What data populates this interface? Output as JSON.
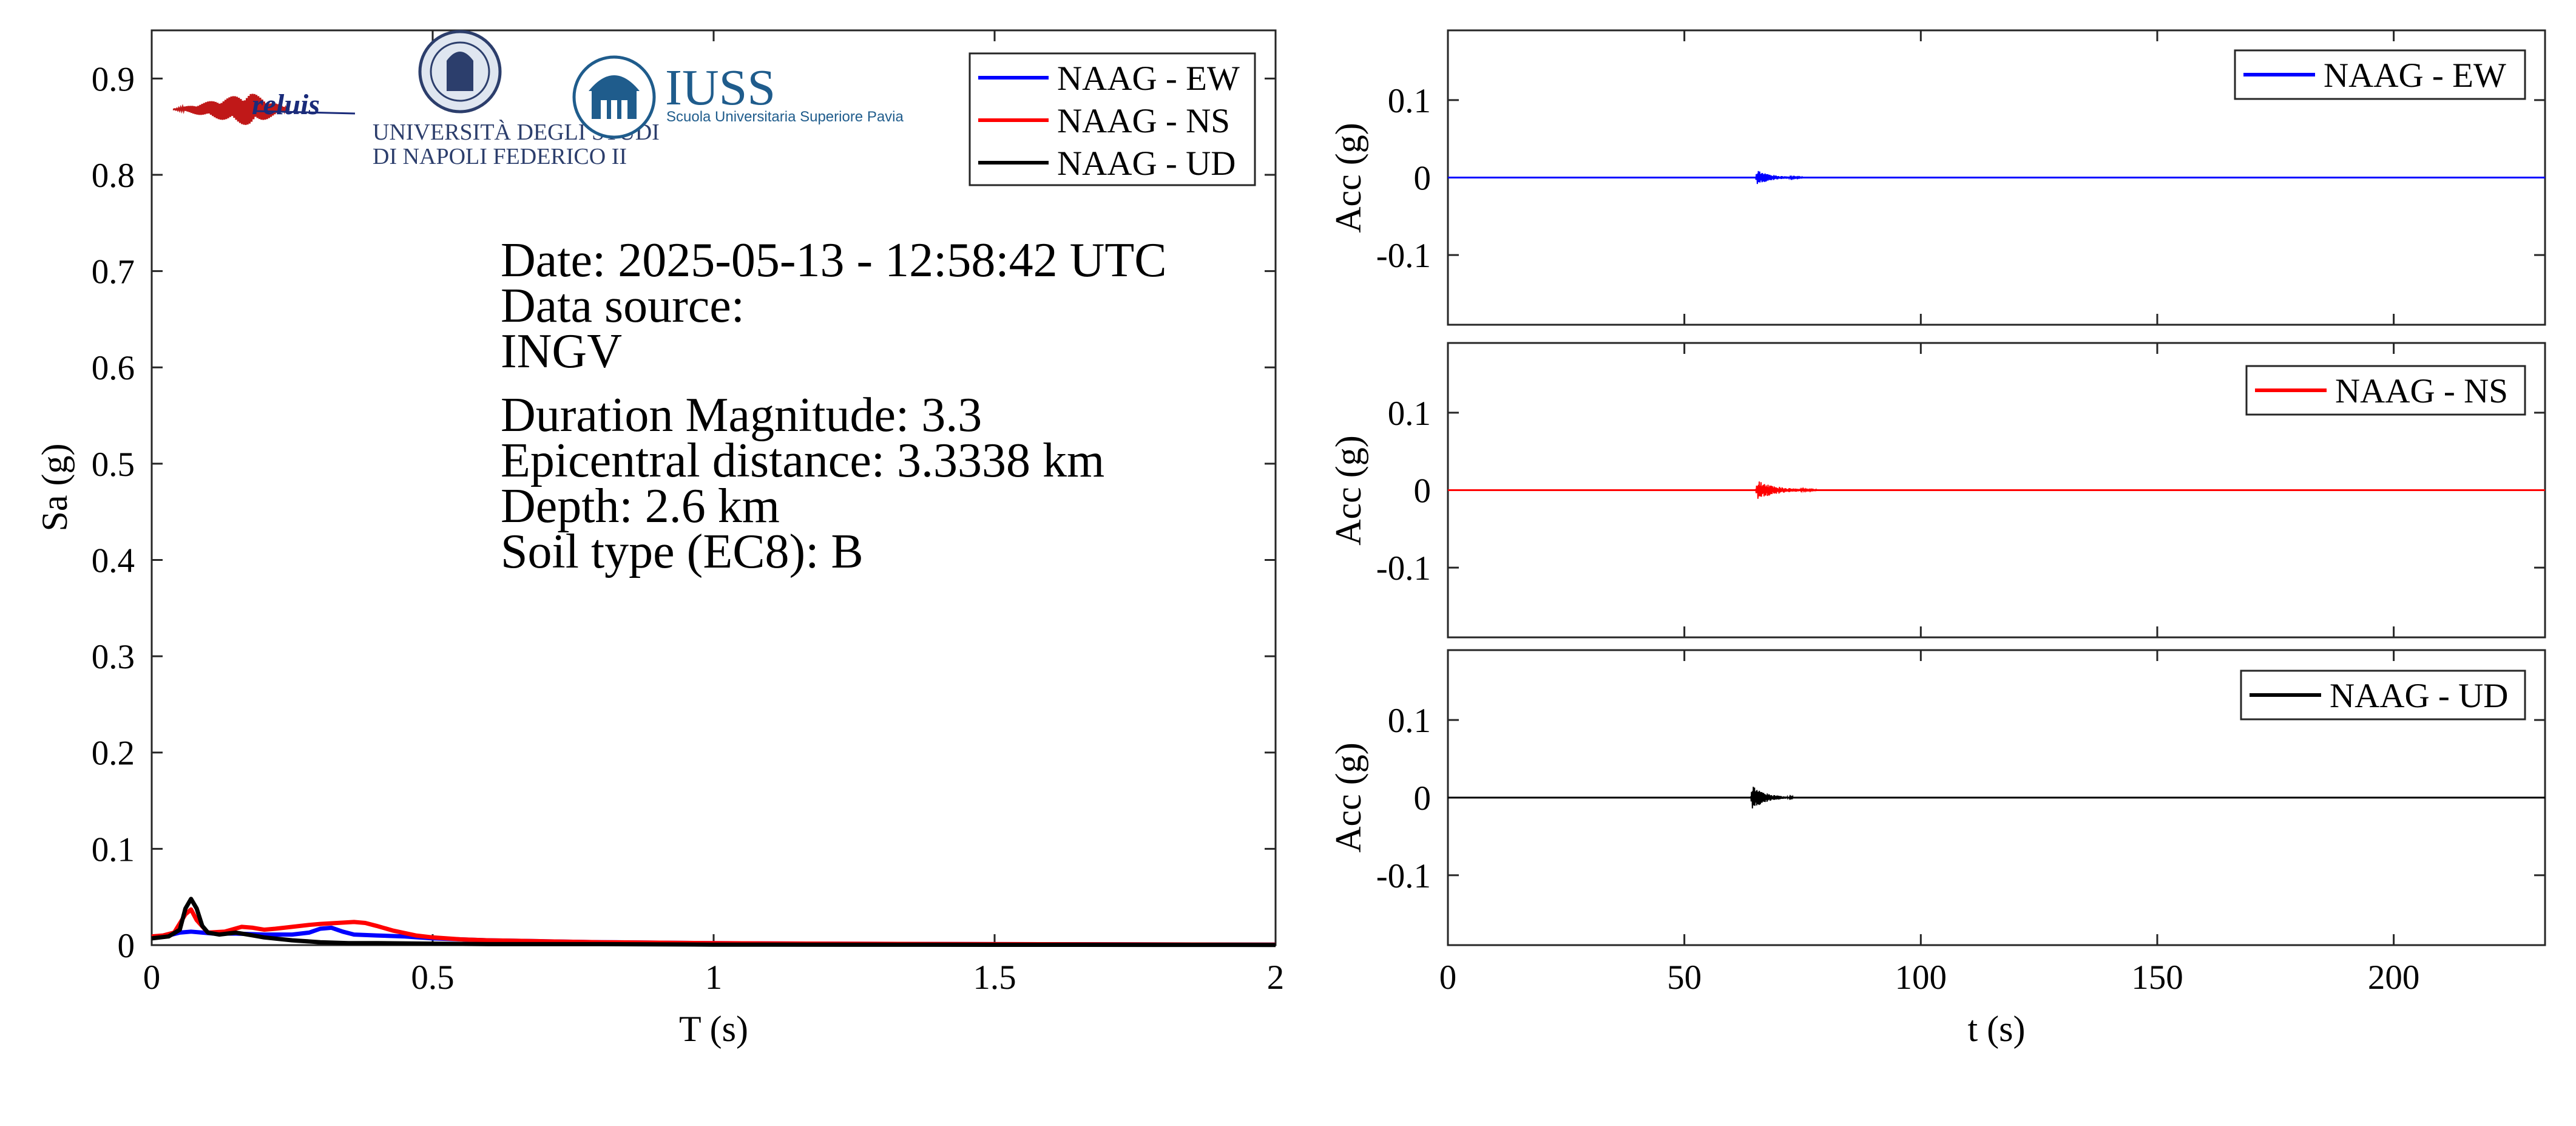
{
  "logos": {
    "reluis_text": "reluis",
    "unina_line1": "UNIVERSITÀ DEGLI STUDI",
    "unina_line2": "DI NAPOLI FEDERICO II",
    "iuss_title": "IUSS",
    "iuss_subtitle": "Scuola Universitaria Superiore Pavia"
  },
  "info": {
    "date": "Date: 2025-05-13 - 12:58:42 UTC",
    "source_label": "Data source:",
    "source_value": "INGV",
    "magnitude": "Duration Magnitude: 3.3",
    "distance": "Epicentral distance: 3.3338 km",
    "depth": "Depth: 2.6 km",
    "soil": "Soil type (EC8): B"
  },
  "colors": {
    "EW": "#0000ff",
    "NS": "#ff0000",
    "UD": "#000000"
  },
  "chart_data": [
    {
      "type": "line",
      "xlabel": "T (s)",
      "ylabel": "Sa (g)",
      "xlim": [
        0,
        2
      ],
      "ylim": [
        0,
        0.95
      ],
      "xticks": [
        0,
        0.5,
        1,
        1.5,
        2
      ],
      "xticklabels": [
        "0",
        "0.5",
        "1",
        "1.5",
        "2"
      ],
      "yticks": [
        0,
        0.1,
        0.2,
        0.3,
        0.4,
        0.5,
        0.6,
        0.7,
        0.8,
        0.9
      ],
      "yticklabels": [
        "0",
        "0.1",
        "0.2",
        "0.3",
        "0.4",
        "0.5",
        "0.6",
        "0.7",
        "0.8",
        "0.9"
      ],
      "legend": "top-right",
      "grid": false,
      "series": [
        {
          "name": "NAAG - EW",
          "x": [
            0,
            0.03,
            0.05,
            0.07,
            0.09,
            0.11,
            0.15,
            0.2,
            0.25,
            0.28,
            0.3,
            0.32,
            0.34,
            0.36,
            0.4,
            0.45,
            0.5,
            0.6,
            0.7,
            0.8,
            1.0,
            1.2,
            1.5,
            2.0
          ],
          "y": [
            0.009,
            0.01,
            0.013,
            0.014,
            0.013,
            0.012,
            0.012,
            0.011,
            0.011,
            0.013,
            0.017,
            0.018,
            0.014,
            0.011,
            0.01,
            0.009,
            0.007,
            0.005,
            0.004,
            0.003,
            0.002,
            0.0015,
            0.001,
            0.0005
          ]
        },
        {
          "name": "NAAG - NS",
          "x": [
            0,
            0.02,
            0.04,
            0.06,
            0.07,
            0.08,
            0.1,
            0.13,
            0.16,
            0.18,
            0.2,
            0.22,
            0.25,
            0.28,
            0.3,
            0.33,
            0.36,
            0.38,
            0.4,
            0.43,
            0.47,
            0.5,
            0.55,
            0.6,
            0.7,
            0.8,
            1.0,
            1.2,
            1.5,
            2.0
          ],
          "y": [
            0.009,
            0.01,
            0.013,
            0.032,
            0.037,
            0.026,
            0.013,
            0.014,
            0.019,
            0.018,
            0.016,
            0.017,
            0.019,
            0.021,
            0.022,
            0.023,
            0.024,
            0.023,
            0.02,
            0.015,
            0.01,
            0.008,
            0.006,
            0.005,
            0.004,
            0.003,
            0.002,
            0.0015,
            0.001,
            0.0005
          ]
        },
        {
          "name": "NAAG - UD",
          "x": [
            0,
            0.03,
            0.05,
            0.06,
            0.07,
            0.08,
            0.09,
            0.1,
            0.12,
            0.15,
            0.18,
            0.2,
            0.25,
            0.3,
            0.35,
            0.4,
            0.5,
            0.6,
            0.8,
            1.0,
            1.5,
            2.0
          ],
          "y": [
            0.007,
            0.009,
            0.016,
            0.038,
            0.048,
            0.038,
            0.02,
            0.013,
            0.011,
            0.013,
            0.01,
            0.008,
            0.005,
            0.003,
            0.002,
            0.002,
            0.0015,
            0.001,
            0.001,
            0.0005,
            0.0003,
            0.0002
          ]
        }
      ]
    },
    {
      "type": "line",
      "xlabel": "",
      "ylabel": "Acc (g)",
      "xlim": [
        0,
        232
      ],
      "ylim": [
        -0.19,
        0.19
      ],
      "yticks": [
        -0.1,
        0,
        0.1
      ],
      "yticklabels": [
        "-0.1",
        "0",
        "0.1"
      ],
      "legend": "top-right",
      "series": [
        {
          "name": "NAAG - EW",
          "event_start": 65,
          "event_end": 75,
          "peak_amplitude": 0.003
        }
      ]
    },
    {
      "type": "line",
      "xlabel": "",
      "ylabel": "Acc (g)",
      "xlim": [
        0,
        232
      ],
      "ylim": [
        -0.19,
        0.19
      ],
      "yticks": [
        -0.1,
        0,
        0.1
      ],
      "yticklabels": [
        "-0.1",
        "0",
        "0.1"
      ],
      "legend": "top-right",
      "series": [
        {
          "name": "NAAG - NS",
          "event_start": 65,
          "event_end": 78,
          "peak_amplitude": 0.004
        }
      ]
    },
    {
      "type": "line",
      "xlabel": "t (s)",
      "ylabel": "Acc (g)",
      "xlim": [
        0,
        232
      ],
      "ylim": [
        -0.19,
        0.19
      ],
      "xticks": [
        0,
        50,
        100,
        150,
        200
      ],
      "xticklabels": [
        "0",
        "50",
        "100",
        "150",
        "200"
      ],
      "yticks": [
        -0.1,
        0,
        0.1
      ],
      "yticklabels": [
        "-0.1",
        "0",
        "0.1"
      ],
      "legend": "top-right",
      "series": [
        {
          "name": "NAAG - UD",
          "event_start": 64,
          "event_end": 73,
          "peak_amplitude": 0.005
        }
      ]
    }
  ]
}
